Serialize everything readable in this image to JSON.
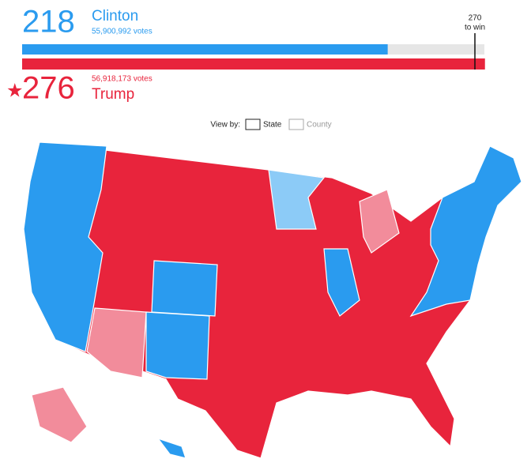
{
  "clinton": {
    "electoral": 218,
    "name": "Clinton",
    "votes_label": "55,900,992 votes"
  },
  "trump": {
    "electoral": 276,
    "name": "Trump",
    "votes_label": "56,918,173 votes"
  },
  "threshold": {
    "value": 270,
    "label": "to win"
  },
  "view_by": {
    "label": "View by:",
    "options": [
      "State",
      "County"
    ]
  }
}
